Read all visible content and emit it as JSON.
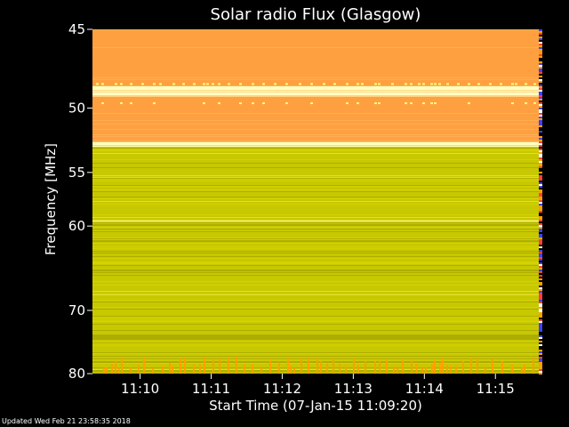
{
  "chart_data": {
    "type": "heatmap",
    "title": "Solar radio Flux (Glasgow)",
    "xlabel": "Start Time (07-Jan-15 11:09:20)",
    "ylabel": "Frequency [MHz]",
    "x_tick_labels": [
      "11:10",
      "11:11",
      "11:12",
      "11:13",
      "11:14",
      "11:15"
    ],
    "x_tick_minutes": [
      0.67,
      1.67,
      2.67,
      3.67,
      4.67,
      5.67
    ],
    "xlim_minutes_after_start": [
      0,
      6.33
    ],
    "y_ticks": [
      45,
      50,
      55,
      60,
      70,
      80
    ],
    "ylim": [
      45,
      80
    ],
    "y_scale": "reciprocal",
    "intensity_bands": [
      {
        "from": 45,
        "to": 48.5,
        "level": "high"
      },
      {
        "from": 48.5,
        "to": 49.2,
        "level": "max"
      },
      {
        "from": 49.2,
        "to": 52.5,
        "level": "high"
      },
      {
        "from": 52.5,
        "to": 52.9,
        "level": "max"
      },
      {
        "from": 52.9,
        "to": 80,
        "level": "low"
      }
    ],
    "colors": {
      "background": "#000000",
      "low": "#c8c800",
      "mid": "#e0d000",
      "high": "#ffa040",
      "max": "#ffffc0",
      "burst": "#ffa000"
    }
  },
  "footer": {
    "updated": "Updated Wed Feb 21 23:58:35 2018"
  }
}
